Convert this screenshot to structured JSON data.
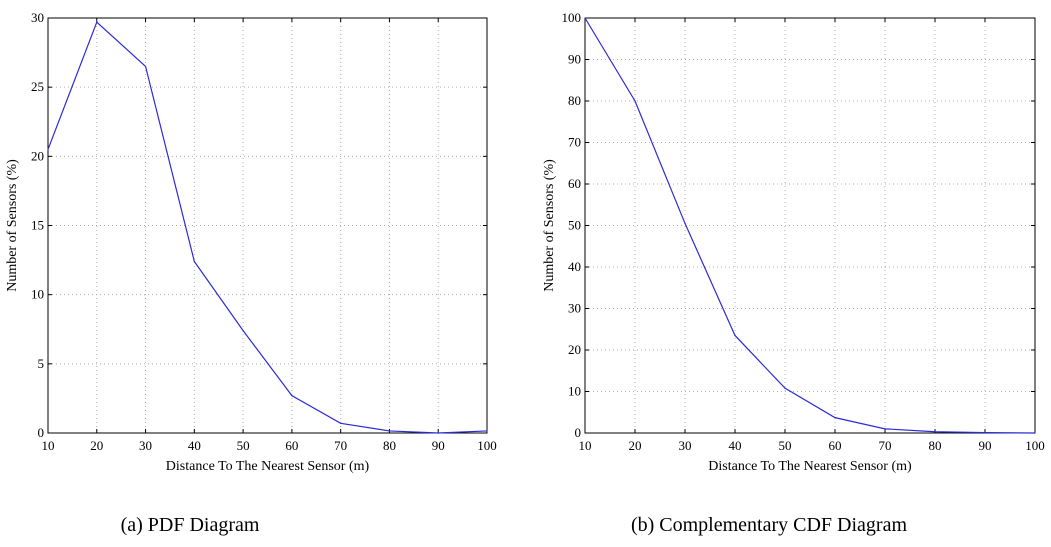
{
  "chart_data": [
    {
      "type": "line",
      "caption": "(a)  PDF Diagram",
      "xlabel": "Distance To The Nearest Sensor (m)",
      "ylabel": "Number of Sensors (%)",
      "xlim": [
        10,
        100
      ],
      "ylim": [
        0,
        30
      ],
      "xticks": [
        10,
        20,
        30,
        40,
        50,
        60,
        70,
        80,
        90,
        100
      ],
      "yticks": [
        0,
        5,
        10,
        15,
        20,
        25,
        30
      ],
      "grid": true,
      "series": [
        {
          "color": "#2b2bd9",
          "x": [
            10,
            20,
            30,
            40,
            50,
            60,
            70,
            80,
            90,
            100
          ],
          "y": [
            20.5,
            29.7,
            26.5,
            12.4,
            7.4,
            2.7,
            0.7,
            0.15,
            0.0,
            0.15
          ]
        }
      ]
    },
    {
      "type": "line",
      "caption": "(b)  Complementary CDF Diagram",
      "xlabel": "Distance To The Nearest Sensor (m)",
      "ylabel": "Number of Sensors (%)",
      "xlim": [
        10,
        100
      ],
      "ylim": [
        0,
        100
      ],
      "xticks": [
        10,
        20,
        30,
        40,
        50,
        60,
        70,
        80,
        90,
        100
      ],
      "yticks": [
        0,
        10,
        20,
        30,
        40,
        50,
        60,
        70,
        80,
        90,
        100
      ],
      "grid": true,
      "series": [
        {
          "color": "#2b2bd9",
          "x": [
            10,
            20,
            30,
            40,
            50,
            60,
            70,
            80,
            90,
            100
          ],
          "y": [
            100,
            80,
            50.5,
            23.5,
            10.8,
            3.7,
            1.0,
            0.3,
            0.1,
            0.0
          ]
        }
      ]
    }
  ]
}
